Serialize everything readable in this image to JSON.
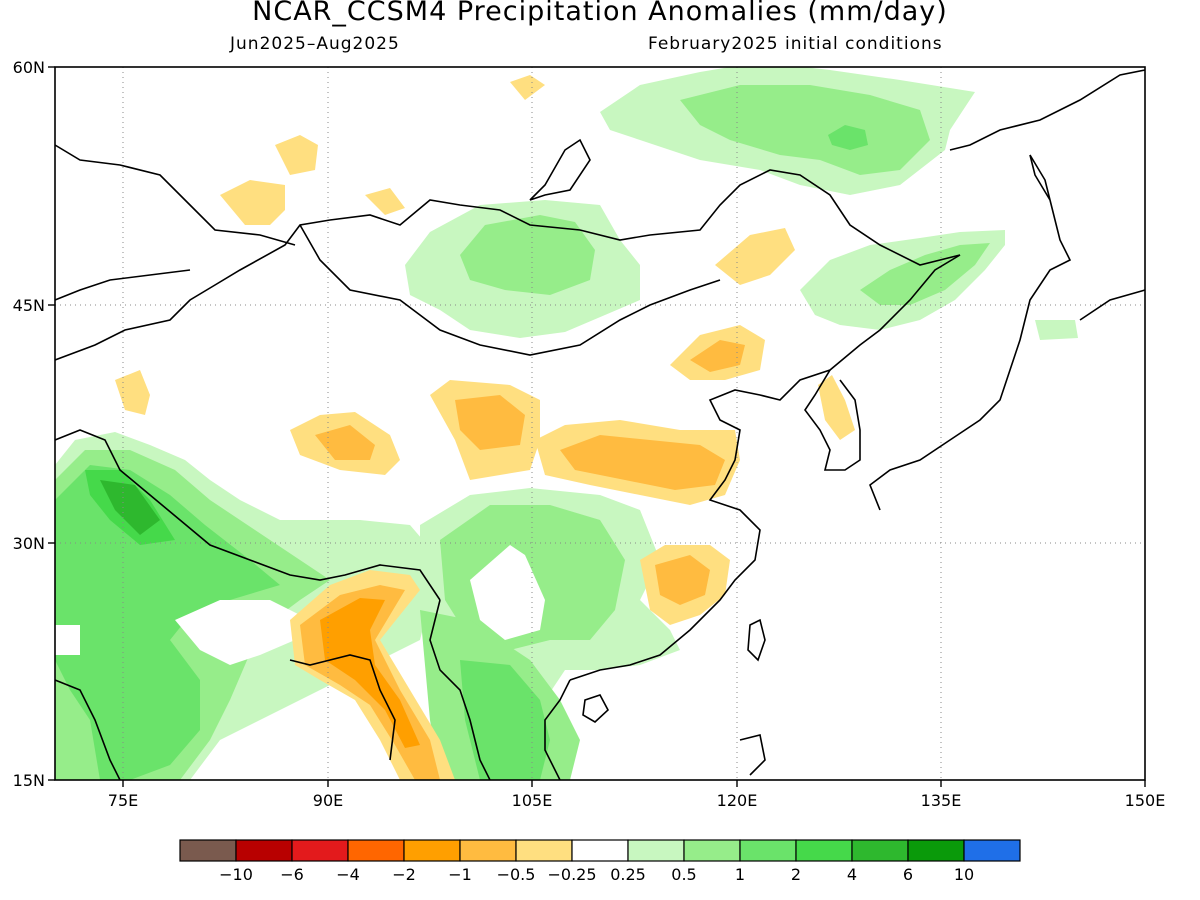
{
  "title": "NCAR_CCSM4 Precipitation Anomalies (mm/day)",
  "period": "Jun2025–Aug2025",
  "init_conditions": "February2025 initial conditions",
  "lat_labels": [
    "60N",
    "45N",
    "30N",
    "15N"
  ],
  "lon_labels": [
    "75E",
    "90E",
    "105E",
    "120E",
    "135E",
    "150E"
  ],
  "colorbar": {
    "colors": [
      "#7a5a4e",
      "#b80000",
      "#e31a1c",
      "#ff6600",
      "#ff9f00",
      "#ffbb40",
      "#ffdf80",
      "#ffffff",
      "#c8f7c0",
      "#96ed8a",
      "#6ae36a",
      "#45d94a",
      "#2eb82e",
      "#0a9a0a",
      "#1f6fe8"
    ],
    "labels": [
      "−10",
      "−6",
      "−4",
      "−2",
      "−1",
      "−0.5",
      "−0.25",
      "0.25",
      "0.5",
      "1",
      "2",
      "4",
      "6",
      "10"
    ]
  },
  "map_data": {
    "extent": {
      "lon": [
        70,
        150
      ],
      "lat": [
        15,
        60
      ]
    },
    "grid_lons": [
      75,
      90,
      105,
      120,
      135
    ],
    "grid_lats": [
      30,
      45
    ],
    "anomaly_regions": [
      {
        "name": "Southeast China dry anomaly",
        "level": "-1 to -0.5"
      },
      {
        "name": "North China dry anomaly",
        "level": "-1 to -0.5"
      },
      {
        "name": "Bay of Bengal / Myanmar dry anomaly",
        "level": "-2 to -1"
      },
      {
        "name": "India wet anomaly",
        "level": "1 to 4"
      },
      {
        "name": "Mongolia wet anomaly",
        "level": "0.25 to 1"
      },
      {
        "name": "Northeast Siberia wet anomaly",
        "level": "0.25 to 2"
      },
      {
        "name": "Southwest China wet anomaly",
        "level": "0.25 to 1"
      }
    ]
  }
}
